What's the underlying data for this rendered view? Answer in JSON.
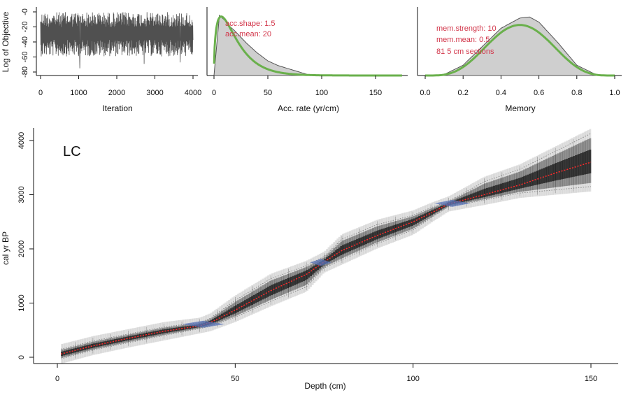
{
  "colors": {
    "trace": "#505050",
    "prior": "#6ab04c",
    "posterior_fill": "#cfcfcf",
    "posterior_line": "#555555",
    "annotation": "#d2364a",
    "model_line": "#ff2a2a",
    "dates": "#5a74b8",
    "envelope_dark": "#1a1a1a",
    "bounds": "#888888"
  },
  "chart_data": [
    {
      "type": "line",
      "panel": "iteration-trace",
      "xlabel": "Iteration",
      "ylabel": "Log of Objective",
      "xlim": [
        0,
        4000
      ],
      "ylim": [
        -80,
        0
      ],
      "xticks": [
        "0",
        "1000",
        "2000",
        "3000",
        "4000"
      ],
      "yticks": [
        "-0",
        "-20",
        "-40",
        "-60",
        "-80"
      ],
      "trace": {
        "iterations": 4000,
        "typical_range": [
          -60,
          -5
        ],
        "min_spikes": [
          -70,
          -78
        ]
      }
    },
    {
      "type": "area",
      "panel": "accumulation-rate",
      "xlabel": "Acc. rate (yr/cm)",
      "xlim": [
        0,
        175
      ],
      "xticks": [
        "0",
        "50",
        "100",
        "150"
      ],
      "annotations": [
        "acc.shape:  1.5",
        "acc.mean:  20"
      ],
      "series": [
        {
          "role": "prior",
          "distribution": "gamma",
          "shape": 1.5,
          "mean": 20
        },
        {
          "role": "posterior",
          "x": [
            0,
            5,
            10,
            15,
            20,
            30,
            40,
            50,
            60,
            70,
            80,
            90
          ],
          "density": [
            0.0,
            0.037,
            0.034,
            0.03,
            0.027,
            0.02,
            0.014,
            0.009,
            0.006,
            0.004,
            0.002,
            0.0
          ]
        }
      ]
    },
    {
      "type": "area",
      "panel": "memory",
      "xlabel": "Memory",
      "xlim": [
        0,
        1
      ],
      "xticks": [
        "0.0",
        "0.2",
        "0.4",
        "0.6",
        "0.8",
        "1.0"
      ],
      "annotations": [
        "mem.strength:  10",
        "mem.mean:  0.5",
        "81  5 cm sections"
      ],
      "series": [
        {
          "role": "prior",
          "distribution": "beta",
          "strength": 10,
          "mean": 0.5
        },
        {
          "role": "posterior",
          "x": [
            0.1,
            0.2,
            0.3,
            0.4,
            0.5,
            0.55,
            0.6,
            0.7,
            0.8,
            0.9
          ],
          "density": [
            0.05,
            0.5,
            1.4,
            2.3,
            2.8,
            2.85,
            2.6,
            1.6,
            0.5,
            0.05
          ]
        }
      ]
    },
    {
      "type": "area",
      "panel": "age-depth",
      "title": "LC",
      "xlabel": "Depth (cm)",
      "ylabel": "cal yr BP",
      "xlim": [
        0,
        155
      ],
      "ylim": [
        -50,
        4150
      ],
      "xticks": [
        "0",
        "50",
        "100",
        "150"
      ],
      "yticks": [
        "0",
        "1000",
        "2000",
        "3000",
        "4000"
      ],
      "grid": false,
      "series": [
        {
          "name": "",
          "role": "mean-model",
          "depth": [
            1,
            10,
            20,
            30,
            40,
            43,
            50,
            60,
            70,
            75,
            80,
            90,
            100,
            105,
            110,
            120,
            130,
            140,
            150
          ],
          "age": [
            60,
            210,
            350,
            480,
            580,
            640,
            870,
            1230,
            1530,
            1760,
            1970,
            2250,
            2500,
            2660,
            2830,
            3000,
            3180,
            3400,
            3600
          ]
        },
        {
          "name": "",
          "role": "lower-95",
          "depth": [
            1,
            10,
            20,
            30,
            40,
            43,
            50,
            60,
            70,
            75,
            80,
            90,
            100,
            105,
            110,
            120,
            130,
            140,
            150
          ],
          "age": [
            -30,
            130,
            270,
            400,
            530,
            570,
            740,
            1030,
            1300,
            1650,
            1800,
            2100,
            2350,
            2570,
            2780,
            2900,
            3030,
            3090,
            3150
          ]
        },
        {
          "name": "",
          "role": "upper-95",
          "depth": [
            1,
            10,
            20,
            30,
            40,
            43,
            50,
            60,
            70,
            75,
            80,
            90,
            100,
            105,
            110,
            120,
            130,
            140,
            150
          ],
          "age": [
            150,
            300,
            430,
            560,
            640,
            720,
            1050,
            1450,
            1690,
            1860,
            2180,
            2450,
            2620,
            2760,
            2880,
            3240,
            3470,
            3800,
            4130
          ]
        },
        {
          "name": "",
          "role": "dated-levels",
          "points": [
            {
              "depth": 41,
              "age": 610,
              "span": 12
            },
            {
              "depth": 74,
              "age": 1750,
              "span": 6
            },
            {
              "depth": 111,
              "age": 2840,
              "span": 10
            }
          ]
        }
      ]
    }
  ]
}
